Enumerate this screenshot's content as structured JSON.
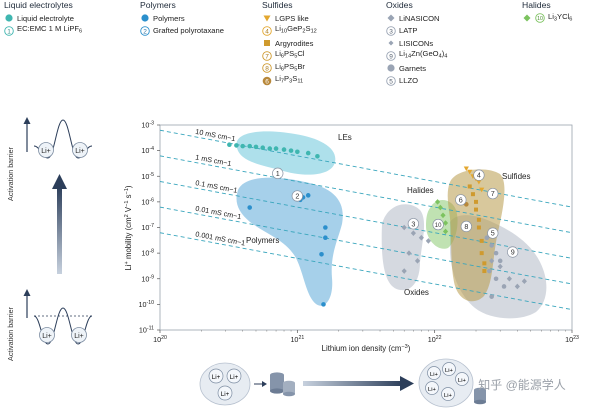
{
  "legend": {
    "liquid": {
      "title": "Liquid electrolytes",
      "items": [
        {
          "label": "Liquid electrolyte",
          "marker": "circle",
          "color": "#3fb6b0",
          "id": ""
        },
        {
          "label": "EC:EMC 1 M LiPF6",
          "marker": "numbered",
          "color": "#3fb6b0",
          "id": "1"
        }
      ]
    },
    "polymers": {
      "title": "Polymers",
      "items": [
        {
          "label": "Polymers",
          "marker": "circle",
          "color": "#2b8fcc",
          "id": ""
        },
        {
          "label": "Grafted polyrotaxane",
          "marker": "numbered",
          "color": "#2b8fcc",
          "id": "2"
        }
      ]
    },
    "sulfides": {
      "title": "Sulfides",
      "items": [
        {
          "label": "LGPS like",
          "marker": "triangle-down",
          "color": "#e3a72f",
          "id": ""
        },
        {
          "label": "Li10GeP2S12",
          "marker": "numbered",
          "color": "#e3a72f",
          "id": "4"
        },
        {
          "label": "Argyrodites",
          "marker": "square",
          "color": "#cf9a2e",
          "id": ""
        },
        {
          "label": "Li6PS5Cl",
          "marker": "numbered",
          "color": "#cf9a2e",
          "id": "7"
        },
        {
          "label": "Li6PS5Br",
          "marker": "numbered",
          "color": "#cf9a2e",
          "id": "8"
        },
        {
          "label": "Li7P3S11",
          "marker": "filled-numbered",
          "color": "#b8883a",
          "id": "6"
        }
      ]
    },
    "oxides": {
      "title": "Oxides",
      "items": [
        {
          "label": "LiNASICON",
          "marker": "diamond",
          "color": "#9aa4b4",
          "id": ""
        },
        {
          "label": "LATP",
          "marker": "numbered",
          "color": "#9aa4b4",
          "id": "3"
        },
        {
          "label": "LISICONs",
          "marker": "diamond-small",
          "color": "#9aa4b4",
          "id": ""
        },
        {
          "label": "Li14Zn(GeO4)4",
          "marker": "numbered",
          "color": "#9aa4b4",
          "id": "9"
        },
        {
          "label": "Garnets",
          "marker": "circle",
          "color": "#9aa4b4",
          "id": ""
        },
        {
          "label": "LLZO",
          "marker": "numbered",
          "color": "#9aa4b4",
          "id": "5"
        }
      ]
    },
    "halides": {
      "title": "Halides",
      "items": [
        {
          "label": "Li3YCl6",
          "marker": "diamond-numbered",
          "color": "#7cc35f",
          "id": "10"
        }
      ]
    }
  },
  "left_panel": {
    "label_top": "Activation barrier",
    "label_bottom": "Activation barrier",
    "ion": "Li+"
  },
  "chart_data": {
    "type": "scatter",
    "xlabel": "Lithium ion density (cm−3)",
    "ylabel": "Li+ mobility (cm2 V−1 s−1)",
    "xscale": "log",
    "yscale": "log",
    "xlim": [
      1e+20,
      1e+23
    ],
    "ylim": [
      1e-11,
      0.001
    ],
    "x_ticks": [
      "10^20",
      "10^21",
      "10^22",
      "10^23"
    ],
    "y_ticks": [
      "10^-3",
      "10^-4",
      "10^-5",
      "10^-6",
      "10^-7",
      "10^-8",
      "10^-9",
      "10^-10",
      "10^-11"
    ],
    "grid": false,
    "conductivity_lines": [
      {
        "label": "10 mS cm−1",
        "sigma_S_per_cm": 0.01
      },
      {
        "label": "1 mS cm−1",
        "sigma_S_per_cm": 0.001
      },
      {
        "label": "0.1 mS cm−1",
        "sigma_S_per_cm": 0.0001
      },
      {
        "label": "0.01 mS cm−1",
        "sigma_S_per_cm": 1e-05
      },
      {
        "label": "0.001 mS cm−1",
        "sigma_S_per_cm": 1e-06
      }
    ],
    "regions": [
      {
        "label": "LEs",
        "color": "#3fb6cf"
      },
      {
        "label": "Polymers",
        "color": "#2b8fcc"
      },
      {
        "label": "Halides",
        "color": "#7cc35f"
      },
      {
        "label": "Sulfides",
        "color": "#b89a4a"
      },
      {
        "label": "Oxides",
        "color": "#9aa4b4"
      }
    ],
    "series": [
      {
        "name": "Liquid electrolyte",
        "marker": "circle",
        "color": "#3fb6b0",
        "points": [
          [
            3.2e+20,
            0.00017
          ],
          [
            3.6e+20,
            0.00016
          ],
          [
            4e+20,
            0.00015
          ],
          [
            4.5e+20,
            0.00015
          ],
          [
            5e+20,
            0.00014
          ],
          [
            5.6e+20,
            0.00013
          ],
          [
            6.3e+20,
            0.00012
          ],
          [
            7e+20,
            0.00012
          ],
          [
            8e+20,
            0.00011
          ],
          [
            9e+20,
            0.0001
          ],
          [
            1e+21,
            9e-05
          ],
          [
            1.2e+21,
            8e-05
          ],
          [
            1.4e+21,
            6e-05
          ]
        ]
      },
      {
        "name": "Polymers",
        "marker": "circle",
        "color": "#2b8fcc",
        "points": [
          [
            4.5e+20,
            6e-07
          ],
          [
            1.05e+21,
            1.2e-06
          ],
          [
            1.1e+21,
            1.5e-06
          ],
          [
            1.2e+21,
            1.8e-06
          ],
          [
            1.6e+21,
            1e-07
          ],
          [
            1.6e+21,
            4e-08
          ],
          [
            1.5e+21,
            9e-09
          ],
          [
            1.55e+21,
            1e-10
          ]
        ]
      },
      {
        "name": "LGPS like",
        "marker": "triangle-down",
        "color": "#e3a72f",
        "points": [
          [
            1.7e+22,
            2e-05
          ],
          [
            1.8e+22,
            1.5e-05
          ],
          [
            1.9e+22,
            1e-05
          ],
          [
            2e+22,
            8e-06
          ],
          [
            2.1e+22,
            6e-06
          ],
          [
            2.2e+22,
            3e-06
          ]
        ]
      },
      {
        "name": "Argyrodites",
        "marker": "square",
        "color": "#cf9a2e",
        "points": [
          [
            1.8e+22,
            4e-06
          ],
          [
            1.9e+22,
            2e-06
          ],
          [
            2e+22,
            1e-06
          ],
          [
            2e+22,
            5e-07
          ],
          [
            2.1e+22,
            2e-07
          ],
          [
            2.1e+22,
            1e-07
          ],
          [
            2.2e+22,
            3e-08
          ],
          [
            2.2e+22,
            1e-08
          ],
          [
            2.3e+22,
            4e-09
          ],
          [
            2.3e+22,
            2e-09
          ]
        ]
      },
      {
        "name": "Li7P3S11",
        "marker": "circle",
        "color": "#b8883a",
        "points": [
          [
            1.6e+22,
            1.5e-06
          ],
          [
            1.7e+22,
            8e-07
          ]
        ]
      },
      {
        "name": "Li3YCl6",
        "marker": "diamond",
        "color": "#7cc35f",
        "points": [
          [
            1.05e+22,
            1e-06
          ],
          [
            1.1e+22,
            6e-07
          ],
          [
            1.15e+22,
            3e-07
          ],
          [
            1.2e+22,
            1.5e-07
          ],
          [
            1.2e+22,
            7e-08
          ]
        ]
      },
      {
        "name": "LiNASICON",
        "marker": "diamond",
        "color": "#9aa4b4",
        "points": [
          [
            6e+21,
            1e-07
          ],
          [
            7e+21,
            6e-08
          ],
          [
            8e+21,
            4e-08
          ],
          [
            9e+21,
            3e-08
          ],
          [
            6.5e+21,
            1e-08
          ],
          [
            7.5e+21,
            5e-09
          ],
          [
            6e+21,
            2e-09
          ]
        ]
      },
      {
        "name": "LISICONs",
        "marker": "diamond",
        "color": "#9aa4b4",
        "points": [
          [
            2.6e+22,
            5e-09
          ],
          [
            3e+22,
            3e-09
          ],
          [
            3.5e+22,
            1e-09
          ],
          [
            4e+22,
            5e-10
          ],
          [
            4.5e+22,
            8e-10
          ]
        ]
      },
      {
        "name": "Garnets",
        "marker": "circle",
        "color": "#9aa4b4",
        "points": [
          [
            2.4e+22,
            4e-08
          ],
          [
            2.6e+22,
            2e-08
          ],
          [
            2.8e+22,
            1e-08
          ],
          [
            3e+22,
            5e-09
          ],
          [
            2.5e+22,
            2e-09
          ],
          [
            2.8e+22,
            1e-09
          ],
          [
            3.2e+22,
            5e-10
          ],
          [
            2.6e+22,
            2e-10
          ]
        ]
      }
    ],
    "callouts": [
      {
        "id": "1",
        "x": 7.2e+20,
        "y": 1.3e-05
      },
      {
        "id": "2",
        "x": 1e+21,
        "y": 1.7e-06
      },
      {
        "id": "3",
        "x": 7e+21,
        "y": 1.4e-07
      },
      {
        "id": "4",
        "x": 2.1e+22,
        "y": 1.1e-05
      },
      {
        "id": "5",
        "x": 2.65e+22,
        "y": 6e-08
      },
      {
        "id": "6",
        "x": 1.55e+22,
        "y": 1.2e-06
      },
      {
        "id": "7",
        "x": 2.65e+22,
        "y": 2.1e-06
      },
      {
        "id": "8",
        "x": 1.7e+22,
        "y": 1.1e-07
      },
      {
        "id": "9",
        "x": 3.7e+22,
        "y": 1.1e-08
      },
      {
        "id": "10",
        "x": 1.06e+22,
        "y": 1.3e-07
      }
    ],
    "region_labels": [
      "LEs",
      "Polymers",
      "Halides",
      "Sulfides",
      "Oxides"
    ]
  },
  "bottom": {
    "ion": "Li+",
    "watermark": "知乎 @能源学人"
  }
}
